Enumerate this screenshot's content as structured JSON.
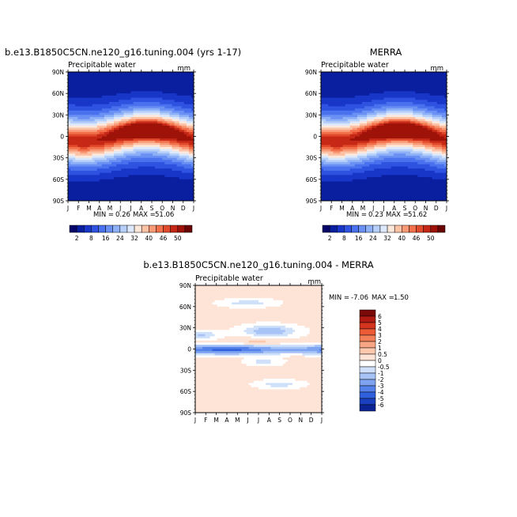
{
  "panels": [
    {
      "title": "b.e13.B1850C5CN.ne120_g16.tuning.004 (yrs 1-17)",
      "subtitle": "Precipitable water",
      "units": "mm",
      "stats": {
        "min_label": "MIN =",
        "min": "0.26",
        "max_label": "MAX =",
        "max": "51.06"
      }
    },
    {
      "title": "MERRA",
      "subtitle": "Precipitable water",
      "units": "mm",
      "stats": {
        "min_label": "MIN =",
        "min": "0.23",
        "max_label": "MAX =",
        "max": "51.62"
      }
    },
    {
      "title": "b.e13.B1850C5CN.ne120_g16.tuning.004 - MERRA",
      "subtitle": "Precipitable water",
      "units": "mm",
      "stats": {
        "min_label": "MIN =",
        "min": "-7.06",
        "max_label": "MAX =",
        "max": "1.50"
      }
    }
  ],
  "colorbars": {
    "abs": {
      "labels": [
        "2",
        "8",
        "16",
        "24",
        "32",
        "40",
        "46",
        "50"
      ],
      "colors": [
        "#06066a",
        "#0a1fa0",
        "#1836c8",
        "#2f53e0",
        "#4a71ee",
        "#6a90f4",
        "#8eb0f7",
        "#b5cffa",
        "#dce8fb",
        "#fde8dc",
        "#fcc2a5",
        "#f99a77",
        "#f2704b",
        "#e24a2c",
        "#c62817",
        "#9e1309",
        "#6a0404"
      ]
    },
    "diff": {
      "labels": [
        "6",
        "5",
        "4",
        "3",
        "2",
        "1",
        "0.5",
        "0",
        "-0.5",
        "-1",
        "-2",
        "-3",
        "-4",
        "-5",
        "-6"
      ],
      "colors": [
        "#7a0a0a",
        "#b01a12",
        "#d4331e",
        "#ec5a36",
        "#f4805a",
        "#f9a684",
        "#fcc8ae",
        "#fde4d6",
        "#ffffff",
        "#cfe0fb",
        "#a8c4f7",
        "#7ea4f1",
        "#5482ea",
        "#3060dc",
        "#1a40c0",
        "#0a2496"
      ]
    }
  },
  "chart_data": [
    {
      "type": "heatmap",
      "title": "b.e13.B1850C5CN.ne120_g16.tuning.004 (yrs 1-17)",
      "subtitle": "Precipitable water",
      "units": "mm",
      "x_ticks": [
        "J",
        "F",
        "M",
        "A",
        "M",
        "J",
        "J",
        "A",
        "S",
        "O",
        "N",
        "D",
        "J"
      ],
      "y_ticks": [
        "90N",
        "60N",
        "30N",
        "0",
        "30S",
        "60S",
        "90S"
      ],
      "ylim": [
        -90,
        90
      ],
      "levels": [
        2,
        5,
        8,
        12,
        16,
        20,
        24,
        28,
        32,
        36,
        40,
        43,
        46,
        48,
        50
      ],
      "min": 0.26,
      "max": 51.06,
      "peak_month_index": 7.5,
      "peak_latitude": 10,
      "peak_value": 51.06
    },
    {
      "type": "heatmap",
      "title": "MERRA",
      "subtitle": "Precipitable water",
      "units": "mm",
      "x_ticks": [
        "J",
        "F",
        "M",
        "A",
        "M",
        "J",
        "J",
        "A",
        "S",
        "O",
        "N",
        "D",
        "J"
      ],
      "y_ticks": [
        "90N",
        "60N",
        "30N",
        "0",
        "30S",
        "60S",
        "90S"
      ],
      "ylim": [
        -90,
        90
      ],
      "levels": [
        2,
        5,
        8,
        12,
        16,
        20,
        24,
        28,
        32,
        36,
        40,
        43,
        46,
        48,
        50
      ],
      "min": 0.23,
      "max": 51.62,
      "peak_month_index": 7.5,
      "peak_latitude": 10,
      "peak_value": 51.62
    },
    {
      "type": "heatmap",
      "title": "b.e13.B1850C5CN.ne120_g16.tuning.004 - MERRA",
      "subtitle": "Precipitable water",
      "units": "mm",
      "x_ticks": [
        "J",
        "F",
        "M",
        "A",
        "M",
        "J",
        "J",
        "A",
        "S",
        "O",
        "N",
        "D",
        "J"
      ],
      "y_ticks": [
        "90N",
        "60N",
        "30N",
        "0",
        "30S",
        "60S",
        "90S"
      ],
      "ylim": [
        -90,
        90
      ],
      "levels": [
        -6,
        -5,
        -4,
        -3,
        -2,
        -1,
        -0.5,
        0,
        0.5,
        1,
        2,
        3,
        4,
        5,
        6
      ],
      "min": -7.06,
      "max": 1.5,
      "features": [
        {
          "desc": "negative band near equator",
          "latitude": 0,
          "value": -5
        },
        {
          "desc": "negative band near equator, second maximum",
          "month_index": 10.5,
          "latitude": 0,
          "value": -4
        },
        {
          "desc": "negative patch",
          "month_index": 7,
          "latitude": 25,
          "value": -2
        },
        {
          "desc": "negative patch",
          "month_index": 5,
          "latitude": 65,
          "value": -1
        },
        {
          "desc": "negative patch",
          "month_index": 8,
          "latitude": -50,
          "value": -0.5
        },
        {
          "desc": "positive patch",
          "month_index": 6,
          "latitude": 10,
          "value": 0.5
        }
      ]
    }
  ]
}
